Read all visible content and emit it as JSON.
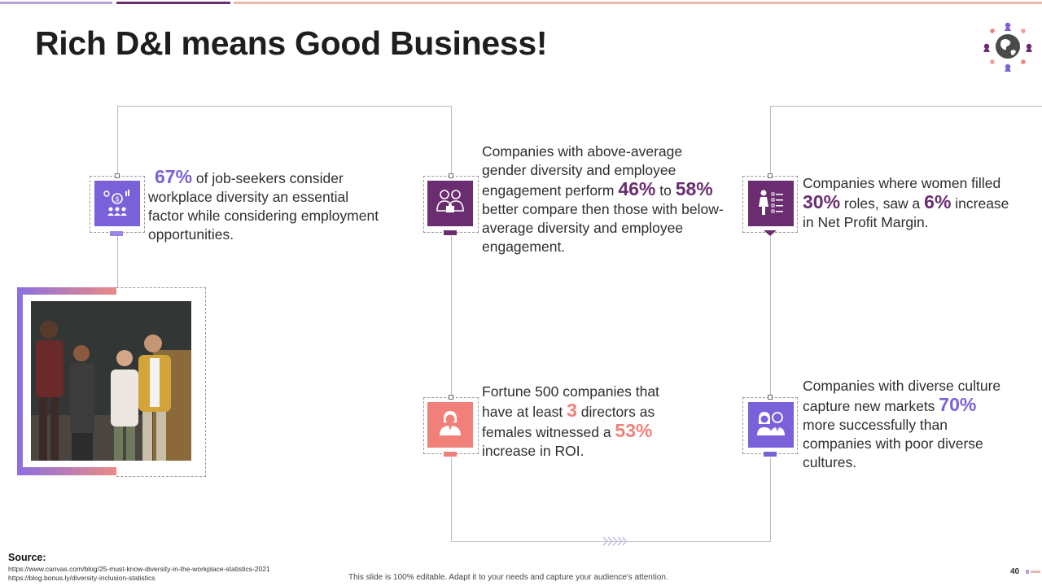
{
  "title": "Rich D&I means Good Business!",
  "stats": {
    "s1": {
      "big": "67%",
      "text": " of job-seekers consider workplace diversity an essential factor while considering employment opportunities."
    },
    "s2": {
      "t1": "Companies with above-average gender diversity and employee engagement perform ",
      "big1": "46%",
      "t2": " to ",
      "big2": "58%",
      "t3": " better compare then those with below-average diversity and employee engagement."
    },
    "s3": {
      "t1": "Companies where women filled ",
      "big1": "30%",
      "t2": " roles, saw a ",
      "big2": "6%",
      "t3": " increase in Net Profit Margin."
    },
    "s4": {
      "t1": "Fortune 500 companies that have at least ",
      "big1": "3",
      "t2": " directors as females witnessed a ",
      "big2": "53%",
      "t3": " increase in ROI."
    },
    "s5": {
      "t1": "Companies with diverse culture capture new markets ",
      "big1": "70%",
      "t2": " more successfully than companies with poor diverse cultures."
    }
  },
  "icons": {
    "s1": "finance-team-icon",
    "s2": "business-people-icon",
    "s3": "woman-checklist-icon",
    "s4": "businesswoman-icon",
    "s5": "diverse-people-icon"
  },
  "colors": {
    "purple": "#7b61d9",
    "dark_purple": "#6a2d6f",
    "coral": "#f1807a"
  },
  "source": {
    "label": "Source:",
    "urls": [
      "https://www.canvas.com/blog/25-must-know-diversity-in-the-workplace-statistics-2021",
      "https://blog.bonus.ly/diversity-inclusion-statistics"
    ]
  },
  "footer": "This slide is 100% editable. Adapt it to your needs and capture your audience's attention.",
  "page_number": "40"
}
